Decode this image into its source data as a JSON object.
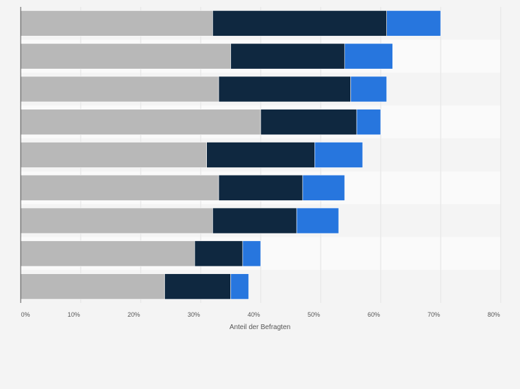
{
  "chart_data": {
    "type": "bar",
    "orientation": "horizontal",
    "stacked": true,
    "categories": [
      "",
      "",
      "",
      "",
      "",
      "",
      "",
      "",
      ""
    ],
    "series": [
      {
        "color": "#b8b8b8",
        "values": [
          32,
          35,
          33,
          40,
          31,
          33,
          32,
          29,
          24
        ]
      },
      {
        "color": "#0f2840",
        "values": [
          29,
          19,
          22,
          16,
          18,
          14,
          14,
          8,
          11
        ]
      },
      {
        "color": "#2776de",
        "values": [
          9,
          8,
          6,
          4,
          8,
          7,
          7,
          3,
          3
        ]
      }
    ],
    "xlabel": "Anteil der Befragten",
    "xlim": [
      0,
      80
    ],
    "xticks": [
      "0%",
      "10%",
      "20%",
      "30%",
      "40%",
      "50%",
      "60%",
      "70%",
      "80%"
    ],
    "grid": true,
    "legend": "none"
  }
}
